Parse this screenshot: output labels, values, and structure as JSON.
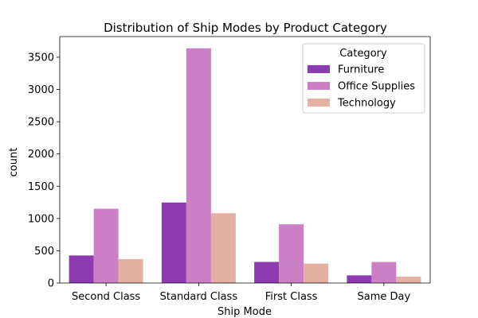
{
  "chart_data": {
    "type": "bar",
    "title": "Distribution of Ship Modes by Product Category",
    "xlabel": "Ship Mode",
    "ylabel": "count",
    "categories": [
      "Second Class",
      "Standard Class",
      "First Class",
      "Same Day"
    ],
    "series": [
      {
        "name": "Furniture",
        "values": [
          427,
          1248,
          327,
          119
        ],
        "color": "#8e3bb1"
      },
      {
        "name": "Office Supplies",
        "values": [
          1152,
          3638,
          910,
          326
        ],
        "color": "#cb7fc4"
      },
      {
        "name": "Technology",
        "values": [
          371,
          1082,
          301,
          98
        ],
        "color": "#e3b0a2"
      }
    ],
    "ylim": [
      0,
      3820
    ],
    "yticks": [
      0,
      500,
      1000,
      1500,
      2000,
      2500,
      3000,
      3500
    ],
    "grid": false,
    "legend": {
      "title": "Category",
      "placement": "top-right"
    }
  }
}
